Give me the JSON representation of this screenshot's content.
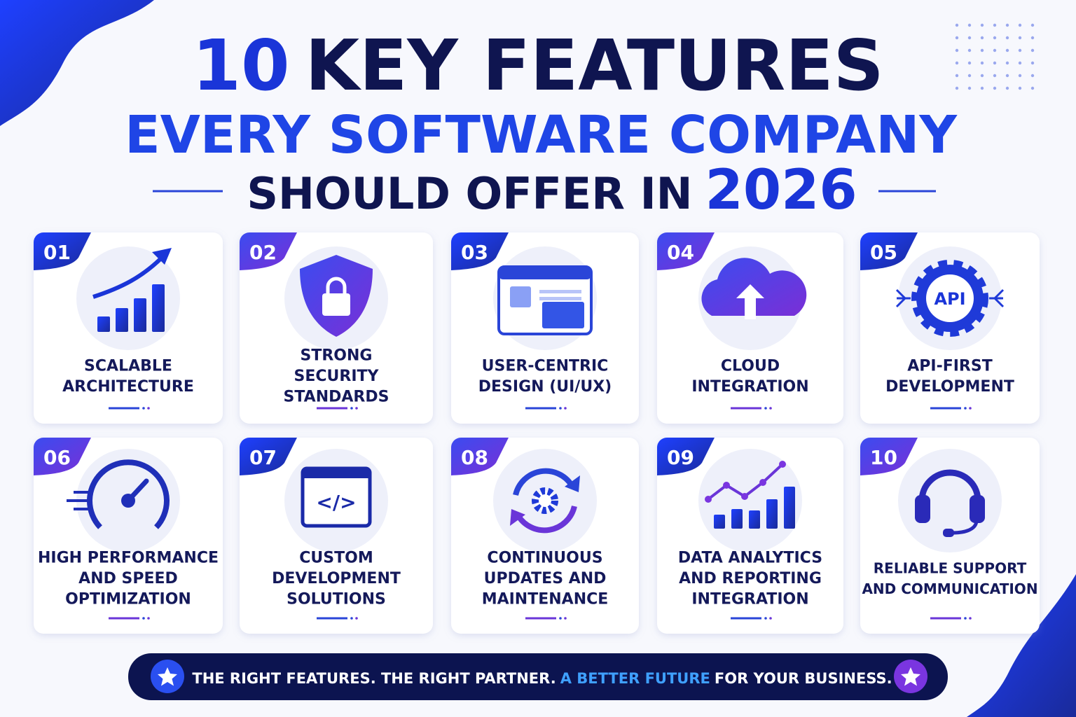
{
  "header": {
    "line1": {
      "number": "10",
      "text": "KEY FEATURES"
    },
    "line2": "EVERY SOFTWARE COMPANY",
    "line3": {
      "text": "SHOULD OFFER IN",
      "year": "2026"
    }
  },
  "cards": [
    {
      "number": "01",
      "lines": [
        "SCALABLE",
        "ARCHITECTURE"
      ]
    },
    {
      "number": "02",
      "lines": [
        "STRONG",
        "SECURITY",
        "STANDARDS"
      ]
    },
    {
      "number": "03",
      "lines": [
        "USER-CENTRIC",
        "DESIGN (UI/UX)"
      ]
    },
    {
      "number": "04",
      "lines": [
        "CLOUD",
        "INTEGRATION"
      ]
    },
    {
      "number": "05",
      "lines": [
        "API-FIRST",
        "DEVELOPMENT"
      ],
      "icon_text": "API"
    },
    {
      "number": "06",
      "lines": [
        "HIGH PERFORMANCE",
        "AND SPEED",
        "OPTIMIZATION"
      ]
    },
    {
      "number": "07",
      "lines": [
        "CUSTOM",
        "DEVELOPMENT",
        "SOLUTIONS"
      ],
      "icon_text": "</>"
    },
    {
      "number": "08",
      "lines": [
        "CONTINUOUS",
        "UPDATES AND",
        "MAINTENANCE"
      ]
    },
    {
      "number": "09",
      "lines": [
        "DATA ANALYTICS",
        "AND REPORTING",
        "INTEGRATION"
      ]
    },
    {
      "number": "10",
      "lines": [
        "RELIABLE SUPPORT",
        "AND COMMUNICATION"
      ]
    }
  ],
  "footer": {
    "part1": "THE RIGHT FEATURES. THE RIGHT PARTNER.",
    "highlight": "A BETTER FUTURE",
    "part2": "FOR YOUR BUSINESS."
  }
}
